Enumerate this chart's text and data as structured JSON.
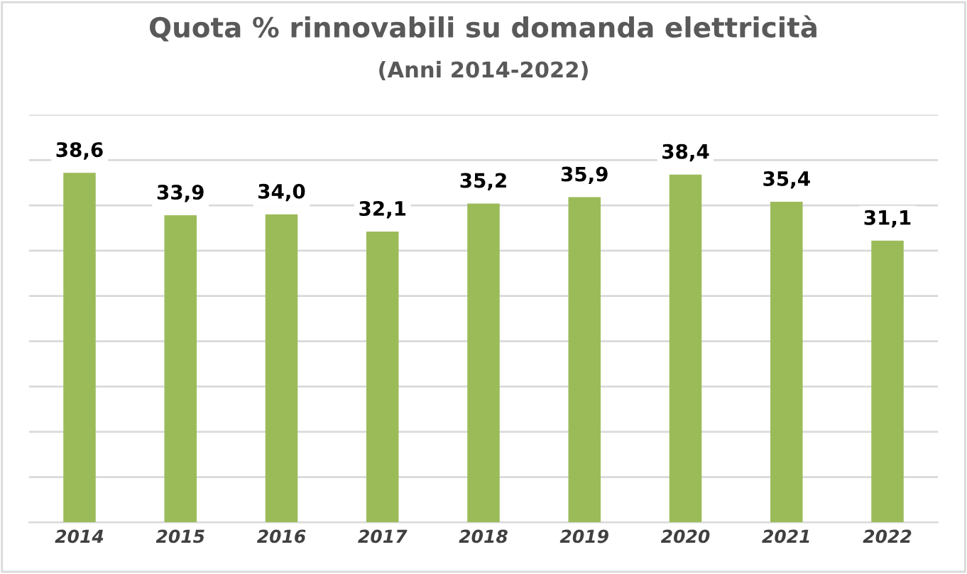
{
  "chart_data": {
    "type": "bar",
    "title": "Quota % rinnovabili su domanda elettricità",
    "subtitle": "(Anni 2014-2022)",
    "categories": [
      "2014",
      "2015",
      "2016",
      "2017",
      "2018",
      "2019",
      "2020",
      "2021",
      "2022"
    ],
    "values": [
      38.6,
      33.9,
      34.0,
      32.1,
      35.2,
      35.9,
      38.4,
      35.4,
      31.1
    ],
    "value_labels": [
      "38,6",
      "33,9",
      "34,0",
      "32,1",
      "35,2",
      "35,9",
      "38,4",
      "35,4",
      "31,1"
    ],
    "color": "#9bbb59",
    "ylim": [
      0,
      45
    ],
    "yticks": [
      {
        "value": 0,
        "label": null
      },
      {
        "value": 5,
        "label": null
      },
      {
        "value": 10,
        "label": null
      },
      {
        "value": 15,
        "label": null
      },
      {
        "value": 20,
        "label": null
      },
      {
        "value": 25,
        "label": null
      },
      {
        "value": 30,
        "label": null
      },
      {
        "value": 35,
        "label": null
      },
      {
        "value": 40,
        "label": null
      },
      {
        "value": 45,
        "label": null
      }
    ],
    "grid": "y",
    "tick_labels": "x",
    "legend": false
  }
}
